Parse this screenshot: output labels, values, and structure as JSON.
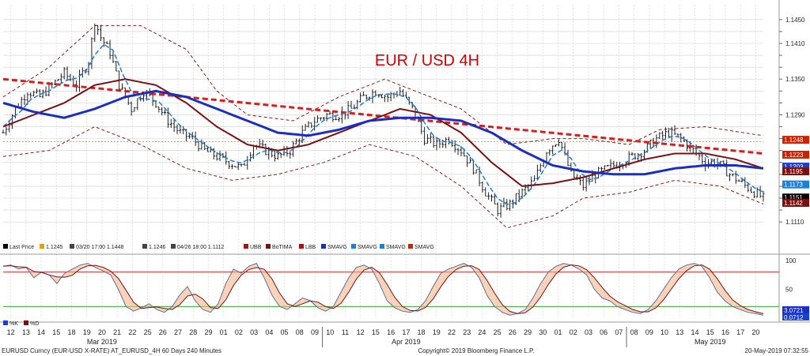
{
  "chart_data": {
    "type": "line",
    "title": "EUR / USD 4H",
    "grid": true,
    "legend": "bottom-left",
    "main_ylim": [
      1.1085,
      1.1475
    ],
    "main_yticks": [
      1.111,
      1.113,
      1.115,
      1.117,
      1.119,
      1.121,
      1.123,
      1.125,
      1.127,
      1.129,
      1.131,
      1.133,
      1.135,
      1.137,
      1.139,
      1.141,
      1.143,
      1.145
    ],
    "main_ytick_labels": [
      "1.1110",
      "",
      "",
      "",
      "",
      "",
      "",
      "",
      "",
      "1.1290",
      "",
      "",
      "1.1350",
      "",
      "",
      "1.1410",
      "",
      "1.1450"
    ],
    "x_labels": [
      "12",
      "13",
      "14",
      "15",
      "18",
      "19",
      "20",
      "21",
      "22",
      "25",
      "26",
      "27",
      "28",
      "29",
      "01",
      "02",
      "03",
      "04",
      "05",
      "08",
      "09",
      "10",
      "11",
      "12",
      "15",
      "16",
      "17",
      "18",
      "19",
      "22",
      "23",
      "24",
      "25",
      "26",
      "29",
      "30",
      "01",
      "02",
      "03",
      "06",
      "07",
      "08",
      "09",
      "10",
      "13",
      "14",
      "15",
      "16",
      "17",
      "20"
    ],
    "x_months": [
      "Mar 2019",
      "Apr 2019",
      "May 2019"
    ],
    "month_positions": [
      1,
      21,
      41
    ],
    "n_bars": 250,
    "bar_skeleton": [
      [
        0,
        1.126
      ],
      [
        4,
        1.13
      ],
      [
        8,
        1.133
      ],
      [
        12,
        1.132
      ],
      [
        16,
        1.134
      ],
      [
        20,
        1.136
      ],
      [
        24,
        1.134
      ],
      [
        28,
        1.138
      ],
      [
        30,
        1.1448
      ],
      [
        32,
        1.142
      ],
      [
        35,
        1.1395
      ],
      [
        38,
        1.134
      ],
      [
        42,
        1.13
      ],
      [
        46,
        1.133
      ],
      [
        50,
        1.131
      ],
      [
        54,
        1.128
      ],
      [
        58,
        1.126
      ],
      [
        62,
        1.125
      ],
      [
        66,
        1.123
      ],
      [
        70,
        1.122
      ],
      [
        74,
        1.121
      ],
      [
        78,
        1.12
      ],
      [
        82,
        1.124
      ],
      [
        86,
        1.123
      ],
      [
        90,
        1.122
      ],
      [
        94,
        1.123
      ],
      [
        98,
        1.126
      ],
      [
        102,
        1.128
      ],
      [
        106,
        1.129
      ],
      [
        110,
        1.129
      ],
      [
        114,
        1.13
      ],
      [
        118,
        1.132
      ],
      [
        122,
        1.133
      ],
      [
        126,
        1.132
      ],
      [
        130,
        1.133
      ],
      [
        134,
        1.13
      ],
      [
        138,
        1.125
      ],
      [
        142,
        1.124
      ],
      [
        146,
        1.125
      ],
      [
        150,
        1.123
      ],
      [
        154,
        1.12
      ],
      [
        158,
        1.116
      ],
      [
        162,
        1.113
      ],
      [
        166,
        1.114
      ],
      [
        170,
        1.116
      ],
      [
        174,
        1.118
      ],
      [
        178,
        1.123
      ],
      [
        182,
        1.125
      ],
      [
        186,
        1.119
      ],
      [
        190,
        1.117
      ],
      [
        194,
        1.119
      ],
      [
        198,
        1.12
      ],
      [
        202,
        1.121
      ],
      [
        206,
        1.122
      ],
      [
        210,
        1.123
      ],
      [
        214,
        1.125
      ],
      [
        218,
        1.126
      ],
      [
        222,
        1.125
      ],
      [
        226,
        1.123
      ],
      [
        230,
        1.121
      ],
      [
        234,
        1.121
      ],
      [
        238,
        1.119
      ],
      [
        242,
        1.1175
      ],
      [
        246,
        1.116
      ],
      [
        249,
        1.115
      ]
    ],
    "sma_slow_blue": [
      [
        0,
        1.131
      ],
      [
        10,
        1.1295
      ],
      [
        20,
        1.1285
      ],
      [
        30,
        1.13
      ],
      [
        40,
        1.132
      ],
      [
        50,
        1.133
      ],
      [
        60,
        1.132
      ],
      [
        70,
        1.13
      ],
      [
        80,
        1.128
      ],
      [
        90,
        1.126
      ],
      [
        100,
        1.1255
      ],
      [
        110,
        1.1265
      ],
      [
        120,
        1.128
      ],
      [
        130,
        1.1285
      ],
      [
        140,
        1.1285
      ],
      [
        150,
        1.128
      ],
      [
        160,
        1.126
      ],
      [
        170,
        1.123
      ],
      [
        180,
        1.1205
      ],
      [
        190,
        1.1195
      ],
      [
        200,
        1.119
      ],
      [
        210,
        1.119
      ],
      [
        220,
        1.12
      ],
      [
        230,
        1.1205
      ],
      [
        240,
        1.1205
      ],
      [
        249,
        1.12
      ]
    ],
    "ma_dark_red": [
      [
        0,
        1.127
      ],
      [
        10,
        1.129
      ],
      [
        20,
        1.131
      ],
      [
        30,
        1.134
      ],
      [
        40,
        1.135
      ],
      [
        50,
        1.134
      ],
      [
        60,
        1.131
      ],
      [
        70,
        1.127
      ],
      [
        80,
        1.124
      ],
      [
        90,
        1.123
      ],
      [
        100,
        1.124
      ],
      [
        110,
        1.126
      ],
      [
        120,
        1.128
      ],
      [
        130,
        1.13
      ],
      [
        140,
        1.129
      ],
      [
        150,
        1.126
      ],
      [
        160,
        1.121
      ],
      [
        170,
        1.117
      ],
      [
        180,
        1.1175
      ],
      [
        190,
        1.1185
      ],
      [
        200,
        1.12
      ],
      [
        210,
        1.1215
      ],
      [
        220,
        1.1225
      ],
      [
        230,
        1.1225
      ],
      [
        240,
        1.1215
      ],
      [
        249,
        1.12
      ]
    ],
    "trend_red": [
      [
        0,
        1.135
      ],
      [
        249,
        1.1225
      ]
    ],
    "upper_band": [
      [
        0,
        1.132
      ],
      [
        15,
        1.137
      ],
      [
        30,
        1.144
      ],
      [
        45,
        1.144
      ],
      [
        60,
        1.14
      ],
      [
        70,
        1.133
      ],
      [
        80,
        1.129
      ],
      [
        95,
        1.128
      ],
      [
        110,
        1.132
      ],
      [
        125,
        1.135
      ],
      [
        135,
        1.133
      ],
      [
        150,
        1.13
      ],
      [
        165,
        1.124
      ],
      [
        180,
        1.125
      ],
      [
        190,
        1.125
      ],
      [
        205,
        1.124
      ],
      [
        215,
        1.1265
      ],
      [
        230,
        1.127
      ],
      [
        245,
        1.1258
      ],
      [
        249,
        1.1255
      ]
    ],
    "lower_band": [
      [
        0,
        1.122
      ],
      [
        15,
        1.123
      ],
      [
        30,
        1.127
      ],
      [
        45,
        1.124
      ],
      [
        60,
        1.12
      ],
      [
        75,
        1.118
      ],
      [
        90,
        1.119
      ],
      [
        105,
        1.121
      ],
      [
        120,
        1.124
      ],
      [
        135,
        1.122
      ],
      [
        150,
        1.117
      ],
      [
        165,
        1.11
      ],
      [
        180,
        1.112
      ],
      [
        190,
        1.115
      ],
      [
        205,
        1.116
      ],
      [
        220,
        1.118
      ],
      [
        235,
        1.117
      ],
      [
        249,
        1.114
      ]
    ],
    "price_line": 1.1245,
    "right_labels": [
      {
        "value": "1.1248",
        "level": 1.1248,
        "color": "#cc2200"
      },
      {
        "value": "1.1223",
        "level": 1.1223,
        "color": "#cc2200"
      },
      {
        "value": "1.1203",
        "level": 1.1203,
        "color": "#1a3fd6"
      },
      {
        "value": "1.1195",
        "level": 1.1195,
        "color": "#7a1010"
      },
      {
        "value": "1.1173",
        "level": 1.1173,
        "color": "#1e7fd8"
      },
      {
        "value": "1.1151",
        "level": 1.1151,
        "color": "#000000"
      },
      {
        "value": "1.1142",
        "level": 1.1142,
        "color": "#7a1010"
      }
    ],
    "legend_items": [
      {
        "label": "Last Price",
        "color": "#000000"
      },
      {
        "label": "1.1245",
        "color": "#e8a000"
      },
      {
        "label": "03/20 17:00 1.1448",
        "color": "#444444"
      },
      {
        "label": "1.1246",
        "color": "#444444"
      },
      {
        "label": "04/26 18:00 1.1112",
        "color": "#444444"
      },
      {
        "label": "UBB",
        "color": "#aa1111"
      },
      {
        "label": "BoTIMA",
        "color": "#7a1010"
      },
      {
        "label": "LBB",
        "color": "#aa1111"
      },
      {
        "label": "SMAVG",
        "color": "#1a2fc0"
      },
      {
        "label": "SMAVG",
        "color": "#1e7fd8"
      },
      {
        "label": "SMAVG",
        "color": "#1e7fd8"
      },
      {
        "label": "SMAVG",
        "color": "#cc2200"
      }
    ],
    "stoch": {
      "ylim": [
        0,
        100
      ],
      "ticks": [
        50,
        100
      ],
      "upper_level": 80,
      "lower_level": 20,
      "legend": [
        "%K",
        "%D"
      ],
      "right_labels": [
        "3.0721",
        "0.0712"
      ],
      "values_k": [
        90,
        92,
        85,
        88,
        70,
        80,
        75,
        60,
        78,
        85,
        92,
        95,
        88,
        82,
        75,
        50,
        20,
        12,
        18,
        25,
        15,
        10,
        20,
        40,
        55,
        30,
        15,
        10,
        25,
        60,
        85,
        78,
        90,
        95,
        70,
        40,
        20,
        15,
        25,
        35,
        30,
        18,
        12,
        20,
        45,
        70,
        88,
        92,
        85,
        60,
        30,
        18,
        12,
        10,
        15,
        30,
        55,
        78,
        85,
        90,
        95,
        88,
        70,
        40,
        20,
        10,
        5,
        8,
        15,
        35,
        60,
        80,
        90,
        95,
        92,
        85,
        75,
        50,
        35,
        30,
        20,
        15,
        10,
        8,
        15,
        30,
        50,
        70,
        85,
        92,
        95,
        90,
        70,
        45,
        30,
        20,
        15,
        10,
        8,
        5
      ]
    },
    "footer": {
      "left": "EURUSD Curncy (EUR-USD X-RATE) AT_EURUSD_4H 60 Days 240 Minutes",
      "center": "Copyright© 2019 Bloomberg Finance L.P.",
      "right": "20-May-2019 07:32:55"
    },
    "colors": {
      "bar": "#202020",
      "blue_ma": "#1a2fc0",
      "dark_red_ma": "#7a1010",
      "trend": "#d81e1e",
      "band": "#8a1a1a",
      "fast_dash": "#1e7fd8",
      "grid": "#cfcfcf",
      "title": "#d40000"
    }
  }
}
